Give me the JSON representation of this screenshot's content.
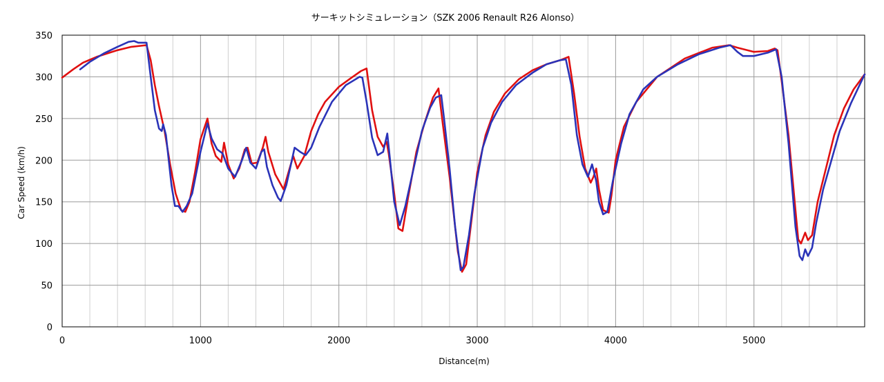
{
  "chart_data": {
    "type": "line",
    "title": "サーキットシミュレーション（SZK 2006 Renault R26 Alonso）",
    "xlabel": "Distance(m)",
    "ylabel": "Car Speed (km/h)",
    "xlim": [
      0,
      5800
    ],
    "ylim": [
      0,
      350
    ],
    "xticks": [
      0,
      1000,
      2000,
      3000,
      4000,
      5000
    ],
    "yticks": [
      0,
      50,
      100,
      150,
      200,
      250,
      300,
      350
    ],
    "grid": true,
    "legend": "none",
    "series": [
      {
        "color": "#e01010",
        "points": [
          [
            0,
            299
          ],
          [
            80,
            309
          ],
          [
            150,
            317
          ],
          [
            250,
            324
          ],
          [
            400,
            332
          ],
          [
            500,
            336
          ],
          [
            610,
            338
          ],
          [
            640,
            320
          ],
          [
            670,
            290
          ],
          [
            700,
            265
          ],
          [
            740,
            235
          ],
          [
            780,
            195
          ],
          [
            820,
            160
          ],
          [
            860,
            140
          ],
          [
            890,
            138
          ],
          [
            920,
            150
          ],
          [
            960,
            185
          ],
          [
            1000,
            225
          ],
          [
            1050,
            250
          ],
          [
            1080,
            220
          ],
          [
            1110,
            205
          ],
          [
            1150,
            198
          ],
          [
            1170,
            221
          ],
          [
            1200,
            195
          ],
          [
            1240,
            178
          ],
          [
            1280,
            190
          ],
          [
            1320,
            213
          ],
          [
            1340,
            215
          ],
          [
            1370,
            196
          ],
          [
            1410,
            197
          ],
          [
            1450,
            215
          ],
          [
            1470,
            228
          ],
          [
            1490,
            210
          ],
          [
            1540,
            183
          ],
          [
            1600,
            165
          ],
          [
            1640,
            188
          ],
          [
            1670,
            205
          ],
          [
            1700,
            190
          ],
          [
            1750,
            205
          ],
          [
            1800,
            235
          ],
          [
            1850,
            255
          ],
          [
            1900,
            270
          ],
          [
            2000,
            288
          ],
          [
            2100,
            300
          ],
          [
            2160,
            307
          ],
          [
            2200,
            310
          ],
          [
            2240,
            260
          ],
          [
            2280,
            228
          ],
          [
            2320,
            216
          ],
          [
            2345,
            222
          ],
          [
            2360,
            208
          ],
          [
            2400,
            160
          ],
          [
            2430,
            118
          ],
          [
            2460,
            115
          ],
          [
            2500,
            155
          ],
          [
            2560,
            210
          ],
          [
            2620,
            245
          ],
          [
            2680,
            275
          ],
          [
            2720,
            286
          ],
          [
            2750,
            245
          ],
          [
            2800,
            180
          ],
          [
            2860,
            90
          ],
          [
            2890,
            66
          ],
          [
            2920,
            75
          ],
          [
            2960,
            130
          ],
          [
            3000,
            185
          ],
          [
            3060,
            230
          ],
          [
            3120,
            258
          ],
          [
            3200,
            280
          ],
          [
            3300,
            297
          ],
          [
            3400,
            308
          ],
          [
            3500,
            315
          ],
          [
            3600,
            320
          ],
          [
            3660,
            324
          ],
          [
            3700,
            280
          ],
          [
            3740,
            228
          ],
          [
            3780,
            190
          ],
          [
            3820,
            173
          ],
          [
            3840,
            180
          ],
          [
            3860,
            190
          ],
          [
            3880,
            165
          ],
          [
            3910,
            140
          ],
          [
            3950,
            137
          ],
          [
            3970,
            158
          ],
          [
            4000,
            200
          ],
          [
            4060,
            240
          ],
          [
            4150,
            270
          ],
          [
            4300,
            300
          ],
          [
            4500,
            322
          ],
          [
            4700,
            335
          ],
          [
            4820,
            338
          ],
          [
            4880,
            335
          ],
          [
            5000,
            330
          ],
          [
            5100,
            331
          ],
          [
            5150,
            334
          ],
          [
            5170,
            332
          ],
          [
            5200,
            295
          ],
          [
            5250,
            230
          ],
          [
            5300,
            140
          ],
          [
            5320,
            105
          ],
          [
            5340,
            100
          ],
          [
            5370,
            113
          ],
          [
            5390,
            104
          ],
          [
            5420,
            110
          ],
          [
            5460,
            150
          ],
          [
            5520,
            190
          ],
          [
            5580,
            230
          ],
          [
            5650,
            262
          ],
          [
            5720,
            285
          ],
          [
            5800,
            303
          ]
        ]
      },
      {
        "color": "#2a33b8",
        "points": [
          [
            130,
            309
          ],
          [
            200,
            318
          ],
          [
            300,
            328
          ],
          [
            400,
            336
          ],
          [
            480,
            342
          ],
          [
            520,
            343
          ],
          [
            550,
            341
          ],
          [
            610,
            341
          ],
          [
            640,
            300
          ],
          [
            670,
            260
          ],
          [
            700,
            238
          ],
          [
            720,
            235
          ],
          [
            730,
            243
          ],
          [
            750,
            230
          ],
          [
            790,
            170
          ],
          [
            815,
            145
          ],
          [
            840,
            145
          ],
          [
            870,
            138
          ],
          [
            900,
            145
          ],
          [
            940,
            160
          ],
          [
            970,
            185
          ],
          [
            1000,
            210
          ],
          [
            1050,
            244
          ],
          [
            1080,
            226
          ],
          [
            1120,
            213
          ],
          [
            1160,
            208
          ],
          [
            1200,
            190
          ],
          [
            1250,
            180
          ],
          [
            1300,
            200
          ],
          [
            1330,
            215
          ],
          [
            1360,
            197
          ],
          [
            1400,
            190
          ],
          [
            1440,
            210
          ],
          [
            1460,
            213
          ],
          [
            1480,
            192
          ],
          [
            1520,
            170
          ],
          [
            1560,
            155
          ],
          [
            1580,
            151
          ],
          [
            1620,
            170
          ],
          [
            1680,
            215
          ],
          [
            1720,
            210
          ],
          [
            1760,
            206
          ],
          [
            1800,
            215
          ],
          [
            1860,
            240
          ],
          [
            1950,
            270
          ],
          [
            2050,
            290
          ],
          [
            2150,
            300
          ],
          [
            2170,
            299
          ],
          [
            2200,
            270
          ],
          [
            2240,
            227
          ],
          [
            2280,
            206
          ],
          [
            2320,
            210
          ],
          [
            2350,
            232
          ],
          [
            2370,
            200
          ],
          [
            2400,
            150
          ],
          [
            2440,
            122
          ],
          [
            2480,
            145
          ],
          [
            2540,
            190
          ],
          [
            2600,
            235
          ],
          [
            2660,
            263
          ],
          [
            2700,
            275
          ],
          [
            2740,
            278
          ],
          [
            2760,
            250
          ],
          [
            2800,
            190
          ],
          [
            2840,
            120
          ],
          [
            2880,
            68
          ],
          [
            2900,
            72
          ],
          [
            2940,
            110
          ],
          [
            2980,
            160
          ],
          [
            3040,
            215
          ],
          [
            3100,
            245
          ],
          [
            3180,
            270
          ],
          [
            3280,
            290
          ],
          [
            3400,
            305
          ],
          [
            3500,
            315
          ],
          [
            3600,
            320
          ],
          [
            3640,
            321
          ],
          [
            3680,
            290
          ],
          [
            3720,
            230
          ],
          [
            3760,
            195
          ],
          [
            3800,
            180
          ],
          [
            3830,
            195
          ],
          [
            3860,
            175
          ],
          [
            3880,
            150
          ],
          [
            3910,
            135
          ],
          [
            3940,
            138
          ],
          [
            3980,
            175
          ],
          [
            4040,
            220
          ],
          [
            4100,
            255
          ],
          [
            4200,
            285
          ],
          [
            4300,
            300
          ],
          [
            4450,
            315
          ],
          [
            4600,
            327
          ],
          [
            4750,
            335
          ],
          [
            4830,
            338
          ],
          [
            4880,
            330
          ],
          [
            4920,
            325
          ],
          [
            5000,
            325
          ],
          [
            5100,
            329
          ],
          [
            5160,
            333
          ],
          [
            5200,
            300
          ],
          [
            5250,
            220
          ],
          [
            5300,
            120
          ],
          [
            5330,
            85
          ],
          [
            5350,
            80
          ],
          [
            5370,
            93
          ],
          [
            5390,
            85
          ],
          [
            5420,
            95
          ],
          [
            5450,
            125
          ],
          [
            5500,
            165
          ],
          [
            5560,
            200
          ],
          [
            5620,
            235
          ],
          [
            5700,
            268
          ],
          [
            5800,
            303
          ]
        ]
      }
    ]
  }
}
